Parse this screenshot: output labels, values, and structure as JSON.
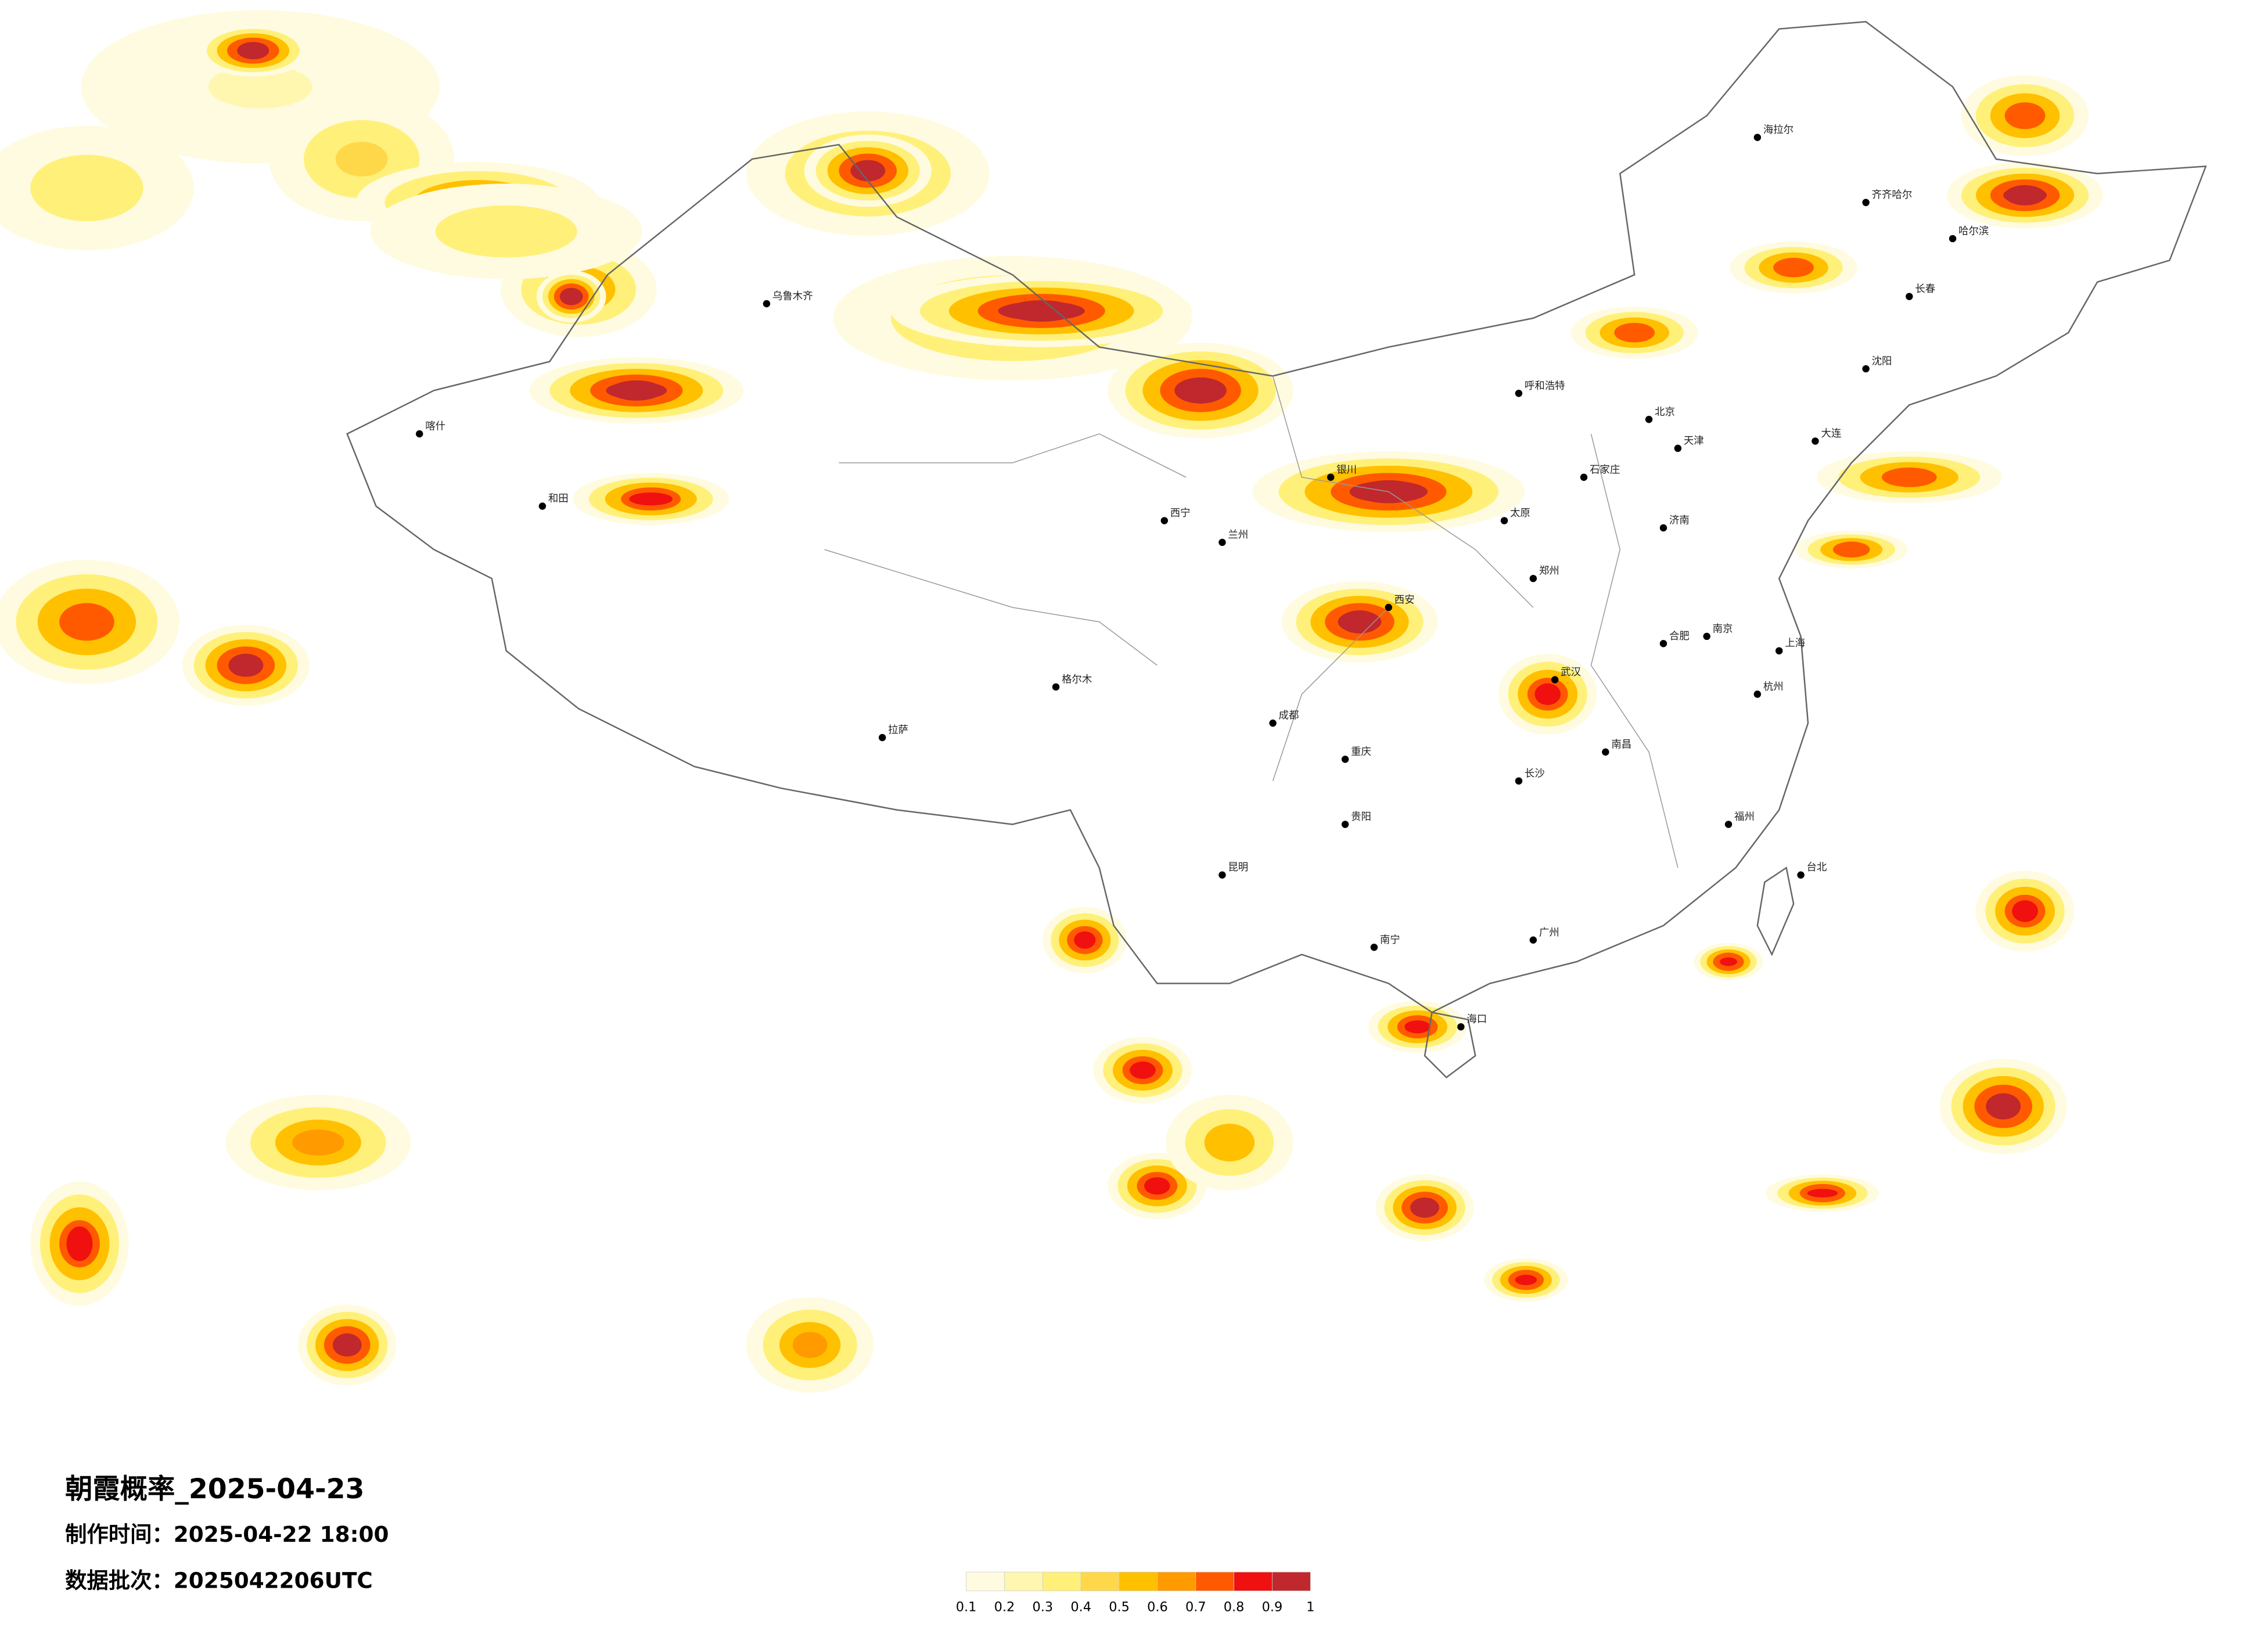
{
  "title": "朝霞概率_2025-04-23",
  "made_time": "制作时间：2025-04-22 18:00",
  "batch": "数据批次：2025042206UTC",
  "legend": {
    "colors": [
      "#fffbe0",
      "#fff6b0",
      "#fff07a",
      "#ffd84a",
      "#ffc000",
      "#ff9a00",
      "#ff5a00",
      "#f01010",
      "#c0282d"
    ],
    "ticks": [
      0.1,
      0.2,
      0.3,
      0.4,
      0.5,
      0.6,
      0.7,
      0.8,
      0.9,
      1
    ]
  },
  "cities": [
    "哈尔滨",
    "长春",
    "沈阳",
    "大连",
    "北京",
    "天津",
    "石家庄",
    "太原",
    "呼和浩特",
    "济南",
    "郑州",
    "西安",
    "兰州",
    "西宁",
    "银川",
    "乌鲁木齐",
    "拉萨",
    "成都",
    "重庆",
    "贵阳",
    "昆明",
    "南宁",
    "广州",
    "福州",
    "南昌",
    "长沙",
    "武汉",
    "合肥",
    "南京",
    "上海",
    "杭州",
    "海口",
    "台北",
    "齐齐哈尔",
    "海拉尔",
    "喀什",
    "和田",
    "格尔木"
  ]
}
